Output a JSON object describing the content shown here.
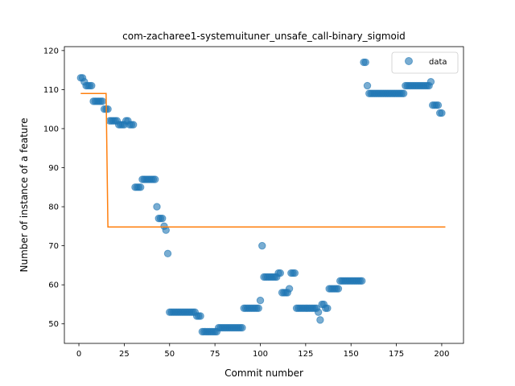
{
  "chart_data": {
    "type": "scatter",
    "title": "com-zacharee1-systemuituner_unsafe_call-binary_sigmoid",
    "xlabel": "Commit number",
    "ylabel": "Number of instance of a feature",
    "xlim": [
      -8,
      212
    ],
    "ylim": [
      45,
      121
    ],
    "xticks": [
      0,
      25,
      50,
      75,
      100,
      125,
      150,
      175,
      200
    ],
    "yticks": [
      50,
      60,
      70,
      80,
      90,
      100,
      110,
      120
    ],
    "grid": false,
    "legend_position": "top-right",
    "colors": {
      "points": "#1f77b4",
      "fit": "#ff7f0e"
    },
    "series": [
      {
        "name": "data",
        "kind": "scatter",
        "points": [
          [
            1,
            113
          ],
          [
            2,
            113
          ],
          [
            3,
            112
          ],
          [
            4,
            111
          ],
          [
            5,
            111
          ],
          [
            6,
            111
          ],
          [
            7,
            111
          ],
          [
            8,
            107
          ],
          [
            9,
            107
          ],
          [
            10,
            107
          ],
          [
            11,
            107
          ],
          [
            12,
            107
          ],
          [
            13,
            107
          ],
          [
            14,
            105
          ],
          [
            15,
            105
          ],
          [
            16,
            105
          ],
          [
            17,
            102
          ],
          [
            18,
            102
          ],
          [
            19,
            102
          ],
          [
            20,
            102
          ],
          [
            21,
            102
          ],
          [
            22,
            101
          ],
          [
            23,
            101
          ],
          [
            24,
            101
          ],
          [
            25,
            101
          ],
          [
            26,
            102
          ],
          [
            27,
            102
          ],
          [
            28,
            101
          ],
          [
            29,
            101
          ],
          [
            30,
            101
          ],
          [
            31,
            85
          ],
          [
            32,
            85
          ],
          [
            33,
            85
          ],
          [
            34,
            85
          ],
          [
            35,
            87
          ],
          [
            36,
            87
          ],
          [
            37,
            87
          ],
          [
            38,
            87
          ],
          [
            39,
            87
          ],
          [
            40,
            87
          ],
          [
            41,
            87
          ],
          [
            42,
            87
          ],
          [
            43,
            80
          ],
          [
            44,
            77
          ],
          [
            45,
            77
          ],
          [
            46,
            77
          ],
          [
            47,
            75
          ],
          [
            48,
            74
          ],
          [
            49,
            68
          ],
          [
            50,
            53
          ],
          [
            51,
            53
          ],
          [
            52,
            53
          ],
          [
            53,
            53
          ],
          [
            54,
            53
          ],
          [
            55,
            53
          ],
          [
            56,
            53
          ],
          [
            57,
            53
          ],
          [
            58,
            53
          ],
          [
            59,
            53
          ],
          [
            60,
            53
          ],
          [
            61,
            53
          ],
          [
            62,
            53
          ],
          [
            63,
            53
          ],
          [
            64,
            53
          ],
          [
            65,
            52
          ],
          [
            66,
            52
          ],
          [
            67,
            52
          ],
          [
            68,
            48
          ],
          [
            69,
            48
          ],
          [
            70,
            48
          ],
          [
            71,
            48
          ],
          [
            72,
            48
          ],
          [
            73,
            48
          ],
          [
            74,
            48
          ],
          [
            75,
            48
          ],
          [
            76,
            48
          ],
          [
            77,
            49
          ],
          [
            78,
            49
          ],
          [
            79,
            49
          ],
          [
            80,
            49
          ],
          [
            81,
            49
          ],
          [
            82,
            49
          ],
          [
            83,
            49
          ],
          [
            84,
            49
          ],
          [
            85,
            49
          ],
          [
            86,
            49
          ],
          [
            87,
            49
          ],
          [
            88,
            49
          ],
          [
            89,
            49
          ],
          [
            90,
            49
          ],
          [
            91,
            54
          ],
          [
            92,
            54
          ],
          [
            93,
            54
          ],
          [
            94,
            54
          ],
          [
            95,
            54
          ],
          [
            96,
            54
          ],
          [
            97,
            54
          ],
          [
            98,
            54
          ],
          [
            99,
            54
          ],
          [
            100,
            56
          ],
          [
            101,
            70
          ],
          [
            102,
            62
          ],
          [
            103,
            62
          ],
          [
            104,
            62
          ],
          [
            105,
            62
          ],
          [
            106,
            62
          ],
          [
            107,
            62
          ],
          [
            108,
            62
          ],
          [
            109,
            62
          ],
          [
            110,
            63
          ],
          [
            111,
            63
          ],
          [
            112,
            58
          ],
          [
            113,
            58
          ],
          [
            114,
            58
          ],
          [
            115,
            58
          ],
          [
            116,
            59
          ],
          [
            117,
            63
          ],
          [
            118,
            63
          ],
          [
            119,
            63
          ],
          [
            120,
            54
          ],
          [
            121,
            54
          ],
          [
            122,
            54
          ],
          [
            123,
            54
          ],
          [
            124,
            54
          ],
          [
            125,
            54
          ],
          [
            126,
            54
          ],
          [
            127,
            54
          ],
          [
            128,
            54
          ],
          [
            129,
            54
          ],
          [
            130,
            54
          ],
          [
            131,
            54
          ],
          [
            132,
            53
          ],
          [
            133,
            51
          ],
          [
            134,
            55
          ],
          [
            135,
            55
          ],
          [
            136,
            54
          ],
          [
            137,
            54
          ],
          [
            138,
            59
          ],
          [
            139,
            59
          ],
          [
            140,
            59
          ],
          [
            141,
            59
          ],
          [
            142,
            59
          ],
          [
            143,
            59
          ],
          [
            144,
            61
          ],
          [
            145,
            61
          ],
          [
            146,
            61
          ],
          [
            147,
            61
          ],
          [
            148,
            61
          ],
          [
            149,
            61
          ],
          [
            150,
            61
          ],
          [
            151,
            61
          ],
          [
            152,
            61
          ],
          [
            153,
            61
          ],
          [
            154,
            61
          ],
          [
            155,
            61
          ],
          [
            156,
            61
          ],
          [
            157,
            117
          ],
          [
            158,
            117
          ],
          [
            159,
            111
          ],
          [
            160,
            109
          ],
          [
            161,
            109
          ],
          [
            162,
            109
          ],
          [
            163,
            109
          ],
          [
            164,
            109
          ],
          [
            165,
            109
          ],
          [
            166,
            109
          ],
          [
            167,
            109
          ],
          [
            168,
            109
          ],
          [
            169,
            109
          ],
          [
            170,
            109
          ],
          [
            171,
            109
          ],
          [
            172,
            109
          ],
          [
            173,
            109
          ],
          [
            174,
            109
          ],
          [
            175,
            109
          ],
          [
            176,
            109
          ],
          [
            177,
            109
          ],
          [
            178,
            109
          ],
          [
            179,
            109
          ],
          [
            180,
            111
          ],
          [
            181,
            111
          ],
          [
            182,
            111
          ],
          [
            183,
            111
          ],
          [
            184,
            111
          ],
          [
            185,
            111
          ],
          [
            186,
            111
          ],
          [
            187,
            111
          ],
          [
            188,
            111
          ],
          [
            189,
            111
          ],
          [
            190,
            111
          ],
          [
            191,
            111
          ],
          [
            192,
            111
          ],
          [
            193,
            111
          ],
          [
            194,
            112
          ],
          [
            195,
            106
          ],
          [
            196,
            106
          ],
          [
            197,
            106
          ],
          [
            198,
            106
          ],
          [
            199,
            104
          ],
          [
            200,
            104
          ]
        ]
      },
      {
        "kind": "line",
        "points": [
          [
            1,
            109
          ],
          [
            15,
            109
          ],
          [
            16,
            74.8
          ],
          [
            202,
            74.8
          ]
        ]
      }
    ]
  }
}
